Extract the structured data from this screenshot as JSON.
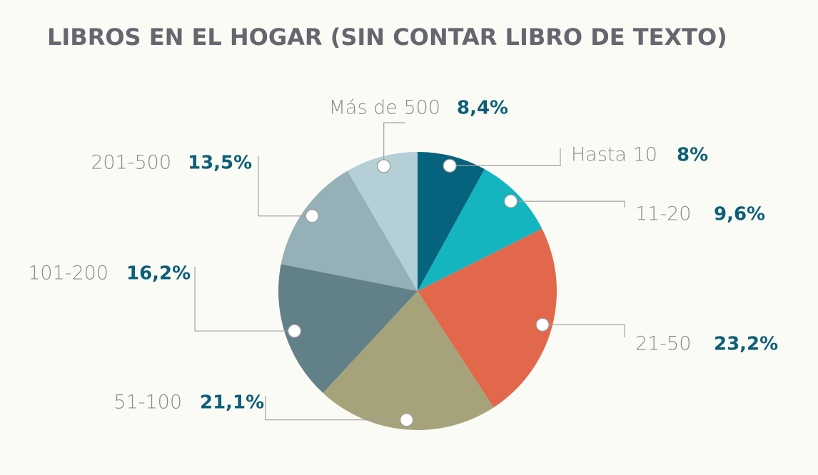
{
  "chart_data": {
    "type": "pie",
    "title": "LIBROS EN EL HOGAR (SIN CONTAR LIBRO DE TEXTO)",
    "categories": [
      "Hasta 10",
      "11-20",
      "21-50",
      "51-100",
      "101-200",
      "201-500",
      "Más de 500"
    ],
    "values": [
      8,
      9.6,
      23.2,
      21.1,
      16.2,
      13.5,
      8.4
    ],
    "value_labels": [
      "8%",
      "9,6%",
      "23,2%",
      "21,1%",
      "16,2%",
      "13,5%",
      "8,4%"
    ],
    "colors": [
      "#06637d",
      "#14b5bf",
      "#e2684b",
      "#a6a37b",
      "#628087",
      "#95b0b7",
      "#b5cfd6"
    ]
  }
}
